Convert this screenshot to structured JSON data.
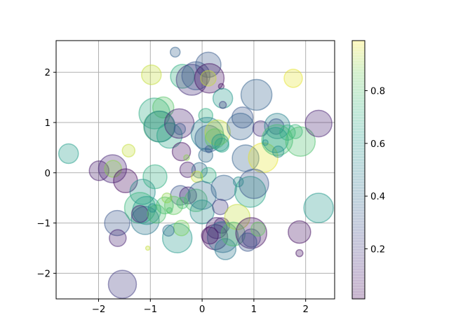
{
  "chart_data": {
    "type": "scatter",
    "title": "",
    "xlabel": "",
    "ylabel": "",
    "xlim": [
      -2.82,
      2.56
    ],
    "ylim": [
      -2.51,
      2.63
    ],
    "grid": true,
    "x_ticks": [
      -2,
      -1,
      0,
      1,
      2
    ],
    "x_tick_labels": [
      "−2",
      "−1",
      "0",
      "1",
      "2"
    ],
    "y_ticks": [
      -2,
      -1,
      0,
      1,
      2
    ],
    "y_tick_labels": [
      "−2",
      "−1",
      "0",
      "1",
      "2"
    ],
    "alpha": 0.3,
    "colormap": "viridis",
    "colorbar": {
      "ticks": [
        0.2,
        0.4,
        0.6,
        0.8
      ],
      "tick_labels": [
        "0.2",
        "0.4",
        "0.6",
        "0.8"
      ],
      "range": [
        0.01,
        0.99
      ]
    },
    "points": [
      {
        "x": -2.58,
        "y": 0.38,
        "r": 14,
        "c": 0.62
      },
      {
        "x": -1.99,
        "y": 0.04,
        "r": 14,
        "c": 0.08
      },
      {
        "x": -1.73,
        "y": 0.08,
        "r": 20,
        "c": 0.12
      },
      {
        "x": -1.72,
        "y": 0.08,
        "r": 12,
        "c": 0.9
      },
      {
        "x": -1.48,
        "y": -0.16,
        "r": 17,
        "c": 0.03
      },
      {
        "x": -1.42,
        "y": 0.44,
        "r": 9,
        "c": 0.95
      },
      {
        "x": -1.64,
        "y": -1.0,
        "r": 18,
        "c": 0.3
      },
      {
        "x": -1.63,
        "y": -1.3,
        "r": 12,
        "c": 0.1
      },
      {
        "x": -1.54,
        "y": -2.22,
        "r": 20,
        "c": 0.2
      },
      {
        "x": -1.15,
        "y": -0.38,
        "r": 18,
        "c": 0.55
      },
      {
        "x": -1.2,
        "y": -0.7,
        "r": 22,
        "c": 0.75
      },
      {
        "x": -1.07,
        "y": -0.75,
        "r": 20,
        "c": 0.62
      },
      {
        "x": -1.1,
        "y": -0.95,
        "r": 20,
        "c": 0.45
      },
      {
        "x": -1.2,
        "y": -0.82,
        "r": 12,
        "c": 0.1
      },
      {
        "x": -0.88,
        "y": -0.82,
        "r": 13,
        "c": 0.8
      },
      {
        "x": -0.96,
        "y": -0.7,
        "r": 6,
        "c": 0.55
      },
      {
        "x": -1.05,
        "y": -1.5,
        "r": 3,
        "c": 0.95
      },
      {
        "x": -0.98,
        "y": 1.95,
        "r": 14,
        "c": 0.95
      },
      {
        "x": -0.92,
        "y": 1.18,
        "r": 22,
        "c": 0.68
      },
      {
        "x": -0.75,
        "y": 1.3,
        "r": 15,
        "c": 0.82
      },
      {
        "x": -0.83,
        "y": 0.92,
        "r": 22,
        "c": 0.8
      },
      {
        "x": -0.82,
        "y": 0.92,
        "r": 22,
        "c": 0.48
      },
      {
        "x": -0.63,
        "y": 0.74,
        "r": 18,
        "c": 0.65
      },
      {
        "x": -0.44,
        "y": 0.98,
        "r": 21,
        "c": 0.1
      },
      {
        "x": -0.43,
        "y": 0.87,
        "r": 8,
        "c": 0.3
      },
      {
        "x": -0.4,
        "y": 0.42,
        "r": 13,
        "c": 0.05
      },
      {
        "x": -0.91,
        "y": -0.08,
        "r": 17,
        "c": 0.7
      },
      {
        "x": -0.52,
        "y": 2.4,
        "r": 7,
        "c": 0.35
      },
      {
        "x": -0.38,
        "y": 1.92,
        "r": 17,
        "c": 0.7
      },
      {
        "x": -0.2,
        "y": 1.85,
        "r": 22,
        "c": 0.15
      },
      {
        "x": -0.12,
        "y": 1.93,
        "r": 20,
        "c": 0.3
      },
      {
        "x": 0.12,
        "y": 2.15,
        "r": 18,
        "c": 0.32
      },
      {
        "x": 0.14,
        "y": 1.88,
        "r": 21,
        "c": 0.05
      },
      {
        "x": 0.12,
        "y": 1.88,
        "r": 11,
        "c": 0.95
      },
      {
        "x": 0.37,
        "y": 1.72,
        "r": 4,
        "c": 0.05
      },
      {
        "x": 0.4,
        "y": 1.48,
        "r": 14,
        "c": 0.6
      },
      {
        "x": 0.4,
        "y": 1.35,
        "r": 5,
        "c": 0.2
      },
      {
        "x": 0.07,
        "y": 1.14,
        "r": 10,
        "c": 0.7
      },
      {
        "x": 0.1,
        "y": 0.78,
        "r": 23,
        "c": 0.5
      },
      {
        "x": 0.12,
        "y": 0.68,
        "r": 19,
        "c": 0.35
      },
      {
        "x": 0.3,
        "y": 0.8,
        "r": 18,
        "c": 0.95
      },
      {
        "x": 0.25,
        "y": 0.68,
        "r": 14,
        "c": 0.85
      },
      {
        "x": 0.35,
        "y": 0.6,
        "r": 12,
        "c": 0.6
      },
      {
        "x": 0.38,
        "y": 0.55,
        "r": 10,
        "c": 0.65
      },
      {
        "x": 0.07,
        "y": 0.35,
        "r": 10,
        "c": 0.4
      },
      {
        "x": 0.13,
        "y": 0.47,
        "r": 5,
        "c": 0.3
      },
      {
        "x": 0.78,
        "y": 1.1,
        "r": 15,
        "c": 0.3
      },
      {
        "x": 0.74,
        "y": 0.92,
        "r": 19,
        "c": 0.35
      },
      {
        "x": 1.05,
        "y": 1.55,
        "r": 22,
        "c": 0.35
      },
      {
        "x": 0.84,
        "y": 0.29,
        "r": 19,
        "c": 0.35
      },
      {
        "x": 1.18,
        "y": 0.3,
        "r": 21,
        "c": 0.98
      },
      {
        "x": 1.13,
        "y": 0.88,
        "r": 11,
        "c": 0.15
      },
      {
        "x": 1.45,
        "y": 0.93,
        "r": 18,
        "c": 0.5
      },
      {
        "x": 1.43,
        "y": 0.92,
        "r": 11,
        "c": 0.3
      },
      {
        "x": 1.45,
        "y": 0.65,
        "r": 22,
        "c": 0.78
      },
      {
        "x": 1.42,
        "y": 0.65,
        "r": 18,
        "c": 0.62
      },
      {
        "x": 1.65,
        "y": 0.8,
        "r": 11,
        "c": 0.72
      },
      {
        "x": 1.8,
        "y": 0.82,
        "r": 10,
        "c": 0.75
      },
      {
        "x": 1.9,
        "y": 0.62,
        "r": 21,
        "c": 0.8
      },
      {
        "x": 1.22,
        "y": 0.6,
        "r": 4,
        "c": 0.55
      },
      {
        "x": 1.47,
        "y": 0.42,
        "r": 8,
        "c": 0.55
      },
      {
        "x": 2.25,
        "y": 0.98,
        "r": 19,
        "c": 0.1
      },
      {
        "x": 1.76,
        "y": 1.88,
        "r": 13,
        "c": 0.98
      },
      {
        "x": -0.28,
        "y": 0.06,
        "r": 11,
        "c": 0.08
      },
      {
        "x": -0.05,
        "y": 0.05,
        "r": 11,
        "c": 0.4
      },
      {
        "x": 0.12,
        "y": -0.05,
        "r": 11,
        "c": 0.7
      },
      {
        "x": -0.3,
        "y": 0.3,
        "r": 4,
        "c": 0.9
      },
      {
        "x": -0.42,
        "y": -0.45,
        "r": 14,
        "c": 0.3
      },
      {
        "x": -0.27,
        "y": -0.45,
        "r": 12,
        "c": 0.1
      },
      {
        "x": -0.1,
        "y": -0.08,
        "r": 8,
        "c": 0.95
      },
      {
        "x": -0.55,
        "y": -0.65,
        "r": 13,
        "c": 0.85
      },
      {
        "x": -0.38,
        "y": -0.6,
        "r": 8,
        "c": 0.78
      },
      {
        "x": -0.12,
        "y": -0.55,
        "r": 16,
        "c": 0.8
      },
      {
        "x": -0.72,
        "y": -0.65,
        "r": 12,
        "c": 0.8
      },
      {
        "x": -0.68,
        "y": -0.5,
        "r": 7,
        "c": 0.9
      },
      {
        "x": -0.63,
        "y": -0.75,
        "r": 4,
        "c": 0.8
      },
      {
        "x": 0.0,
        "y": -0.45,
        "r": 20,
        "c": 0.4
      },
      {
        "x": 0.0,
        "y": -0.78,
        "r": 17,
        "c": 0.55
      },
      {
        "x": 0.42,
        "y": -0.3,
        "r": 18,
        "c": 0.35
      },
      {
        "x": 0.35,
        "y": -0.68,
        "r": 11,
        "c": 0.2
      },
      {
        "x": 0.7,
        "y": -0.18,
        "r": 7,
        "c": 0.55
      },
      {
        "x": 0.93,
        "y": -0.38,
        "r": 22,
        "c": 0.65
      },
      {
        "x": 1.0,
        "y": -0.22,
        "r": 21,
        "c": 0.3
      },
      {
        "x": -0.48,
        "y": -1.3,
        "r": 21,
        "c": 0.6
      },
      {
        "x": -0.4,
        "y": -1.1,
        "r": 11,
        "c": 0.88
      },
      {
        "x": -0.65,
        "y": -1.15,
        "r": 8,
        "c": 0.4
      },
      {
        "x": 0.28,
        "y": -1.1,
        "r": 15,
        "c": 0.1
      },
      {
        "x": 0.38,
        "y": -1.05,
        "r": 11,
        "c": 0.1
      },
      {
        "x": 0.25,
        "y": -1.28,
        "r": 18,
        "c": 0.05
      },
      {
        "x": 0.4,
        "y": -1.28,
        "r": 22,
        "c": 0.4
      },
      {
        "x": 0.45,
        "y": -1.52,
        "r": 15,
        "c": 0.45
      },
      {
        "x": 0.15,
        "y": -1.25,
        "r": 12,
        "c": 0.05
      },
      {
        "x": 0.68,
        "y": -0.88,
        "r": 18,
        "c": 0.95
      },
      {
        "x": 0.6,
        "y": -1.22,
        "r": 17,
        "c": 0.8
      },
      {
        "x": 0.95,
        "y": -1.2,
        "r": 22,
        "c": 0.05
      },
      {
        "x": 0.95,
        "y": -1.3,
        "r": 13,
        "c": 0.2
      },
      {
        "x": 0.88,
        "y": -1.38,
        "r": 13,
        "c": 0.3
      },
      {
        "x": 1.08,
        "y": -1.12,
        "r": 10,
        "c": 0.85
      },
      {
        "x": 1.88,
        "y": -1.18,
        "r": 16,
        "c": 0.05
      },
      {
        "x": 1.88,
        "y": -1.6,
        "r": 5,
        "c": 0.05
      },
      {
        "x": 2.25,
        "y": -0.7,
        "r": 21,
        "c": 0.6
      }
    ]
  }
}
